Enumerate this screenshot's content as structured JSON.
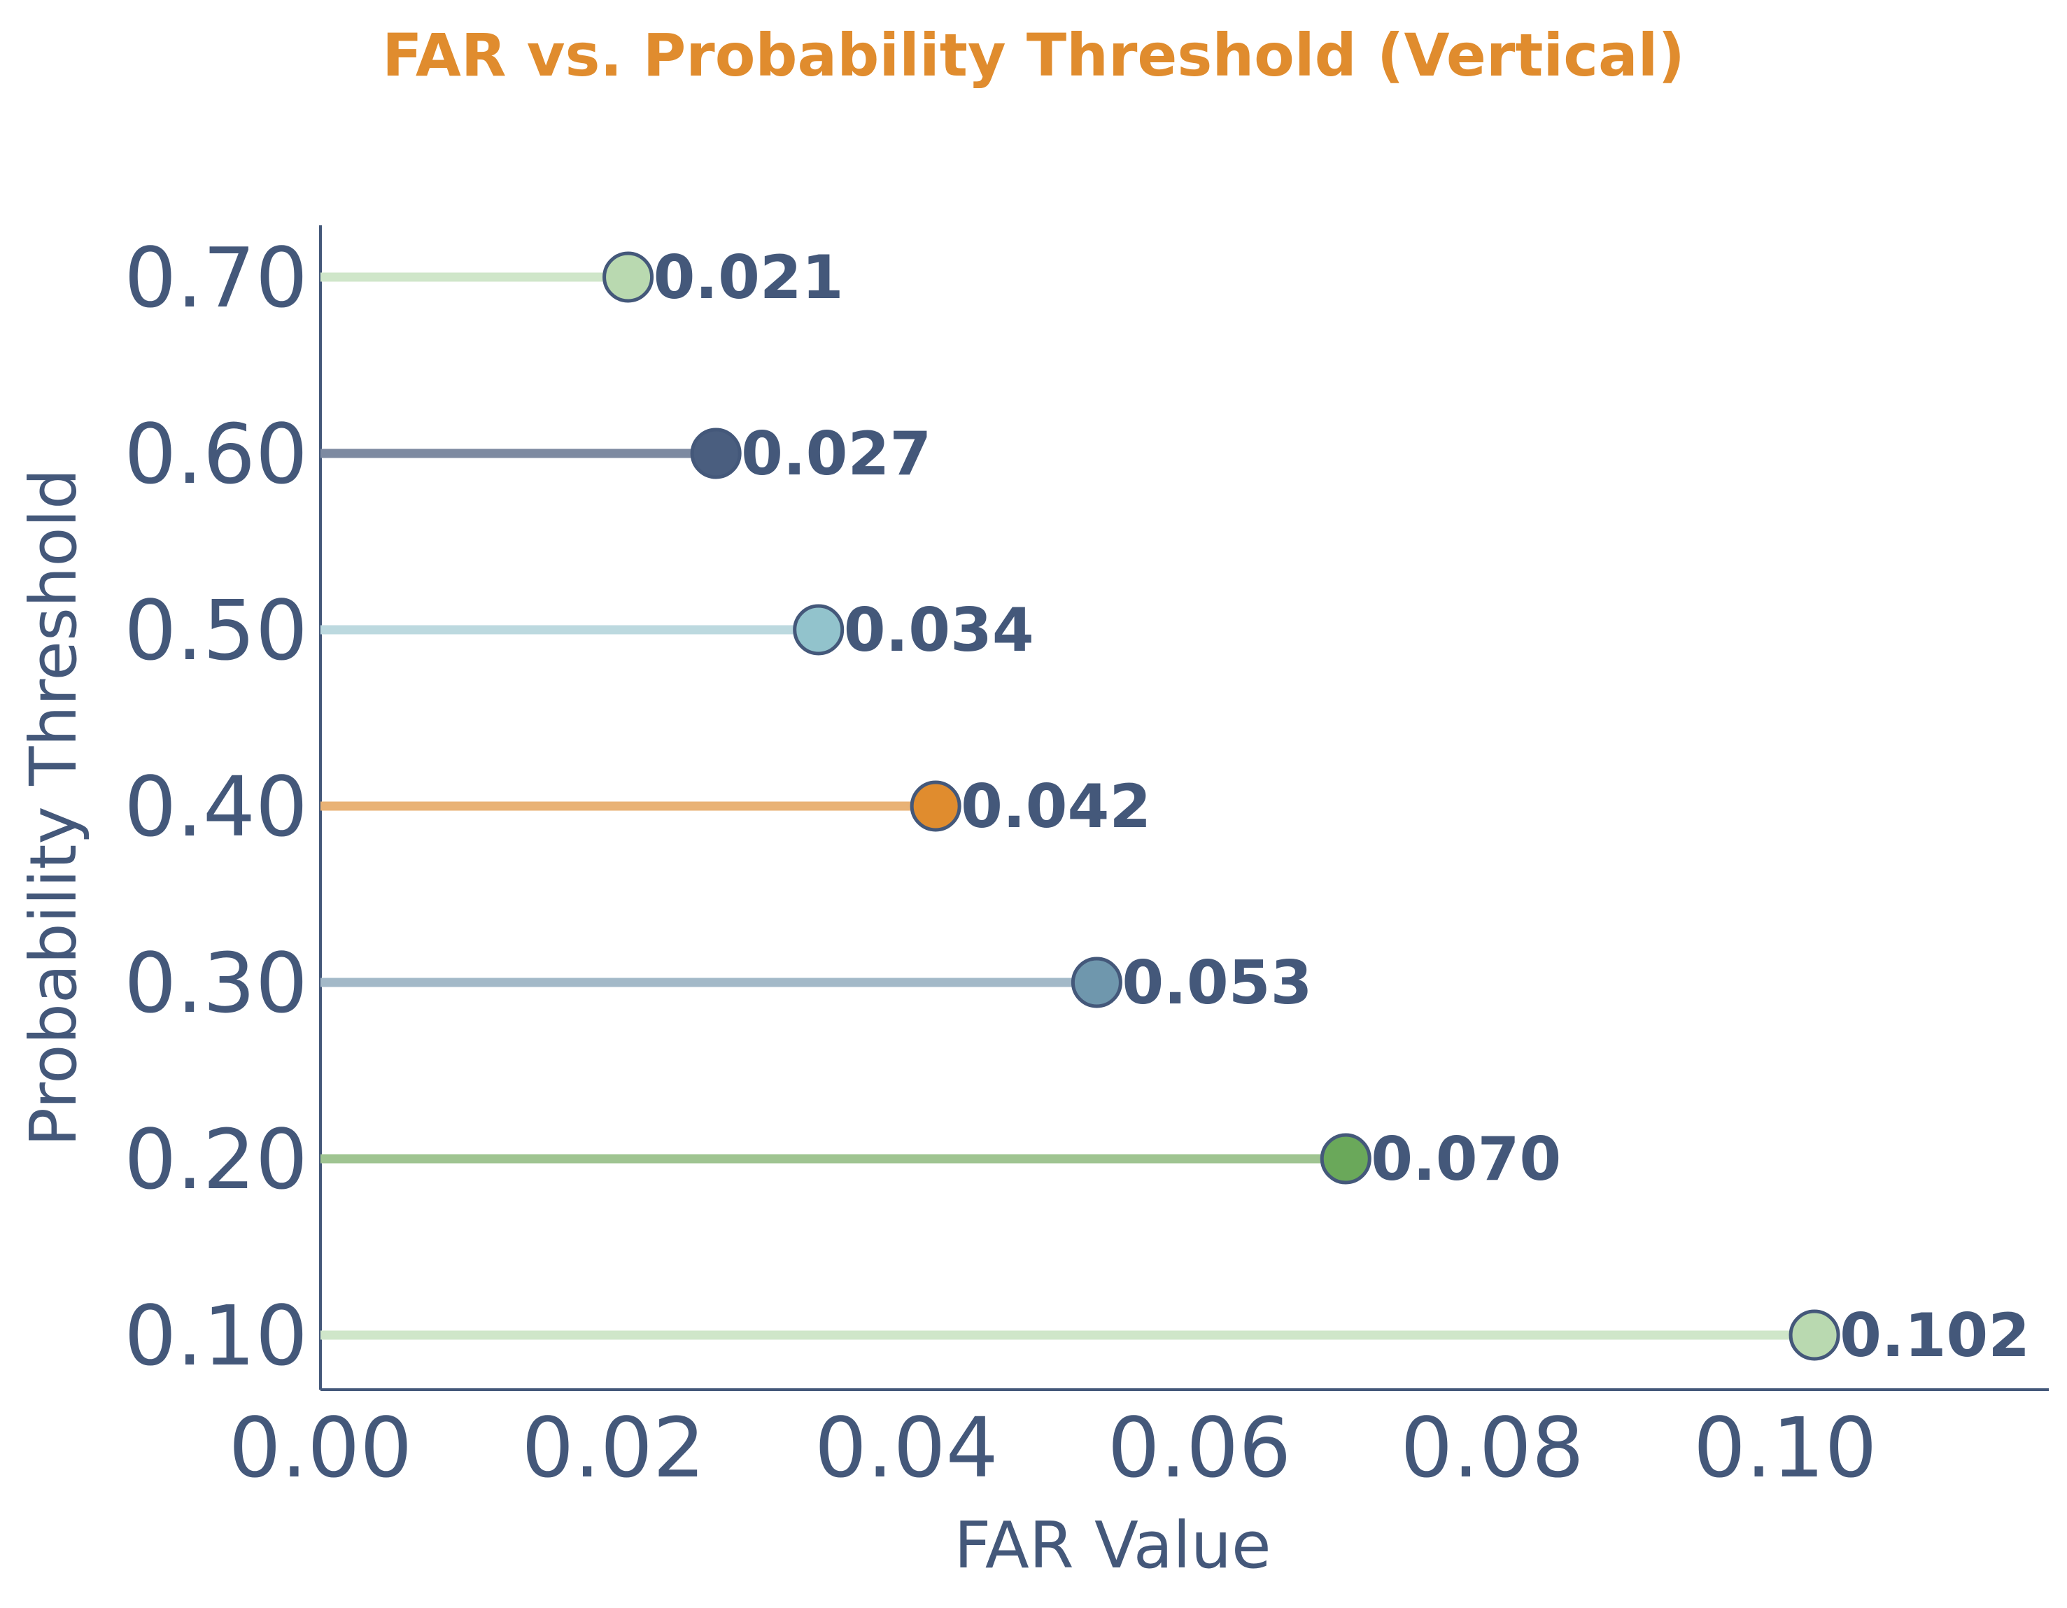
{
  "chart_data": {
    "type": "lollipop",
    "orientation": "horizontal",
    "title": "FAR vs. Probability Threshold (Vertical)",
    "xlabel": "FAR Value",
    "ylabel": "Probability Threshold",
    "xlim": [
      0,
      0.118
    ],
    "x_ticks": [
      "0.00",
      "0.02",
      "0.04",
      "0.06",
      "0.08",
      "0.10"
    ],
    "x_tick_values": [
      0.0,
      0.02,
      0.04,
      0.06,
      0.08,
      0.1
    ],
    "categories": [
      "0.10",
      "0.20",
      "0.30",
      "0.40",
      "0.50",
      "0.60",
      "0.70"
    ],
    "values": [
      0.102,
      0.07,
      0.053,
      0.042,
      0.034,
      0.027,
      0.021
    ],
    "value_labels": [
      "0.102",
      "0.070",
      "0.053",
      "0.042",
      "0.034",
      "0.027",
      "0.021"
    ],
    "point_colors": [
      "#b9d9b0",
      "#6aa85a",
      "#6f97ad",
      "#e08c2e",
      "#92c3cc",
      "#4a5e7f",
      "#b9d9b0"
    ],
    "line_colors": [
      "#cfe6c9",
      "#9fc491",
      "#a3b9c8",
      "#e9b275",
      "#bcd9df",
      "#7d8aa1",
      "#cfe6c9"
    ],
    "grid": false,
    "legend": "none",
    "colors": {
      "title": "#e08c2e",
      "text": "#44587a",
      "axis": "#44587a"
    }
  }
}
